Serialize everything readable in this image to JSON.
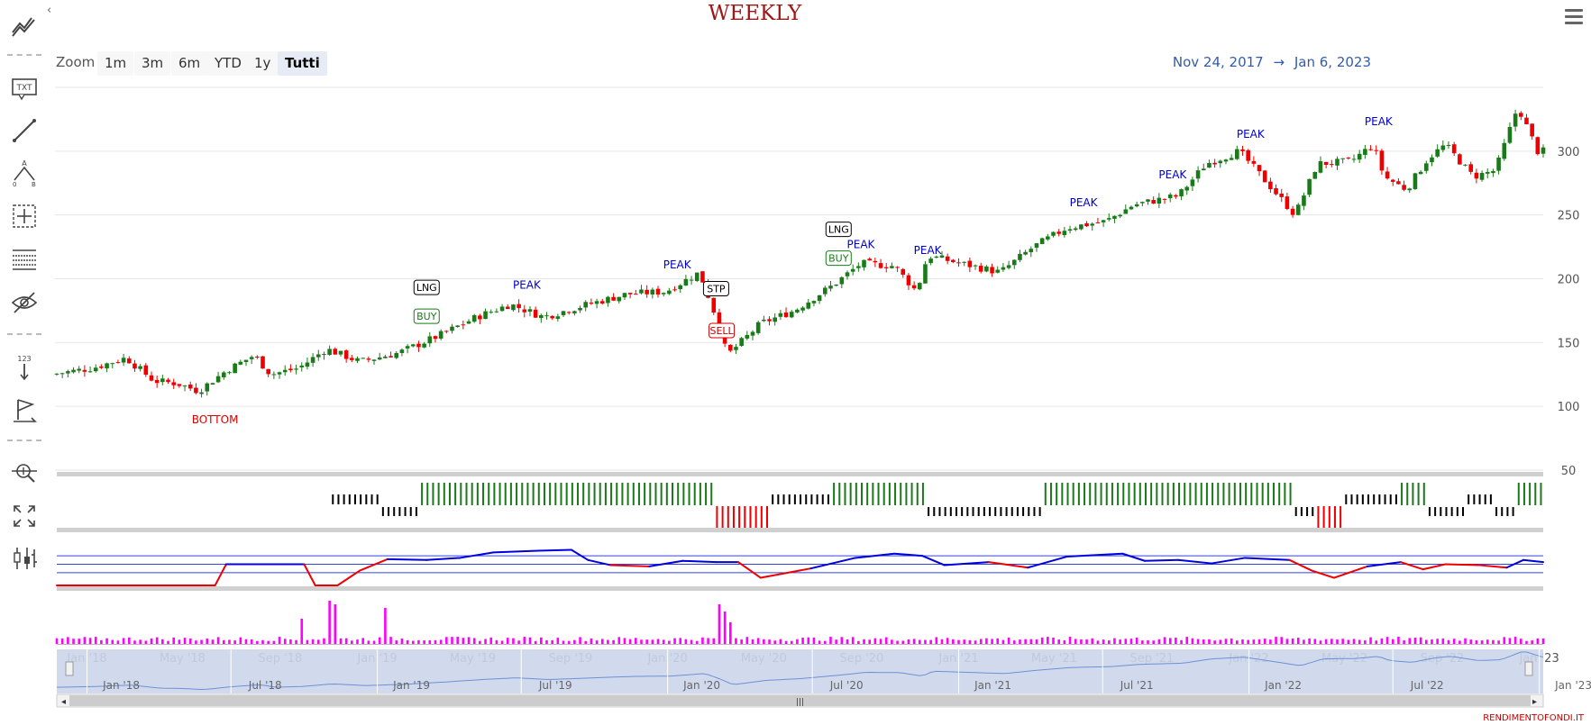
{
  "title": "WEEKLY",
  "zoom": {
    "label": "Zoom",
    "buttons": [
      "1m",
      "3m",
      "6m",
      "YTD",
      "1y",
      "Tutti"
    ],
    "active": "Tutti"
  },
  "range": {
    "from": "Nov 24, 2017",
    "arrow": "→",
    "to": "Jan 6, 2023"
  },
  "credit": "RENDIMENTOFONDI.IT",
  "toolbar": {
    "items": [
      {
        "name": "indicators-icon"
      },
      {
        "name": "text-annotation-icon",
        "text": "TXT"
      },
      {
        "name": "line-icon"
      },
      {
        "name": "fibonacci-icon",
        "text": "A 0 B"
      },
      {
        "name": "crosshair-icon"
      },
      {
        "name": "grid-lines-icon"
      },
      {
        "name": "hide-annotations-icon"
      },
      {
        "name": "vertical-count-icon",
        "text": "123"
      },
      {
        "name": "flag-icon"
      },
      {
        "name": "zoom-move-icon"
      },
      {
        "name": "fullscreen-icon"
      },
      {
        "name": "chart-type-icon"
      }
    ]
  },
  "colors": {
    "up": "#1a7a1a",
    "down": "#ee0000",
    "rsi": "#0000dd",
    "rsi_low": "#ee0000",
    "volume": "#ff00ff",
    "peak": "#0000cc",
    "bottom": "#dd0000",
    "navigator": "#ccd6eb"
  },
  "chart_data": {
    "type": "candlestick",
    "title": "WEEKLY",
    "x_ticks": [
      "Jan '18",
      "May '18",
      "Sep '18",
      "Jan '19",
      "May '19",
      "Sep '19",
      "Jan '20",
      "May '20",
      "Sep '20",
      "Jan '21",
      "May '21",
      "Sep '21",
      "Jan '22",
      "May '22",
      "Sep '22",
      "Jan '23"
    ],
    "y_ticks": [
      50,
      100,
      150,
      200,
      250,
      300
    ],
    "ylim": [
      50,
      350
    ],
    "price_path": [
      [
        "2017-11-24",
        125
      ],
      [
        "2018-01-15",
        130
      ],
      [
        "2018-02-26",
        138
      ],
      [
        "2018-04-02",
        120
      ],
      [
        "2018-05-01",
        118
      ],
      [
        "2018-05-28",
        112
      ],
      [
        "2018-07-02",
        128
      ],
      [
        "2018-08-06",
        140
      ],
      [
        "2018-08-27",
        125
      ],
      [
        "2018-10-01",
        130
      ],
      [
        "2018-11-05",
        145
      ],
      [
        "2018-12-17",
        135
      ],
      [
        "2019-02-04",
        142
      ],
      [
        "2019-03-25",
        155
      ],
      [
        "2019-05-13",
        170
      ],
      [
        "2019-06-24",
        180
      ],
      [
        "2019-08-05",
        170
      ],
      [
        "2019-09-30",
        180
      ],
      [
        "2019-11-18",
        188
      ],
      [
        "2020-01-06",
        190
      ],
      [
        "2020-02-17",
        205
      ],
      [
        "2020-03-09",
        170
      ],
      [
        "2020-03-23",
        140
      ],
      [
        "2020-05-04",
        165
      ],
      [
        "2020-06-15",
        175
      ],
      [
        "2020-08-03",
        195
      ],
      [
        "2020-09-07",
        212
      ],
      [
        "2020-10-19",
        210
      ],
      [
        "2020-11-16",
        190
      ],
      [
        "2020-11-30",
        218
      ],
      [
        "2021-01-25",
        210
      ],
      [
        "2021-03-01",
        205
      ],
      [
        "2021-04-12",
        225
      ],
      [
        "2021-05-24",
        240
      ],
      [
        "2021-07-12",
        245
      ],
      [
        "2021-08-16",
        258
      ],
      [
        "2021-10-11",
        265
      ],
      [
        "2021-11-15",
        290
      ],
      [
        "2021-12-27",
        300
      ],
      [
        "2022-02-07",
        270
      ],
      [
        "2022-03-07",
        250
      ],
      [
        "2022-04-04",
        290
      ],
      [
        "2022-05-16",
        292
      ],
      [
        "2022-06-13",
        305
      ],
      [
        "2022-06-27",
        280
      ],
      [
        "2022-07-25",
        270
      ],
      [
        "2022-08-22",
        295
      ],
      [
        "2022-09-12",
        305
      ],
      [
        "2022-10-17",
        280
      ],
      [
        "2022-11-14",
        285
      ],
      [
        "2022-12-12",
        335
      ],
      [
        "2023-01-06",
        300
      ]
    ],
    "annotations": [
      {
        "text": "BOTTOM",
        "date": "2018-06-11",
        "type": "bottom"
      },
      {
        "text": "LNG",
        "date": "2019-03-04",
        "type": "long"
      },
      {
        "text": "BUY",
        "date": "2019-03-04",
        "type": "buy"
      },
      {
        "text": "PEAK",
        "date": "2019-07-08",
        "type": "peak"
      },
      {
        "text": "PEAK",
        "date": "2020-01-13",
        "type": "peak"
      },
      {
        "text": "STP",
        "date": "2020-03-02",
        "type": "stop"
      },
      {
        "text": "SELL",
        "date": "2020-03-09",
        "type": "sell"
      },
      {
        "text": "LNG",
        "date": "2020-08-03",
        "type": "long"
      },
      {
        "text": "BUY",
        "date": "2020-08-03",
        "type": "buy"
      },
      {
        "text": "PEAK",
        "date": "2020-08-31",
        "type": "peak"
      },
      {
        "text": "PEAK",
        "date": "2020-11-23",
        "type": "peak"
      },
      {
        "text": "PEAK",
        "date": "2021-06-07",
        "type": "peak"
      },
      {
        "text": "PEAK",
        "date": "2021-09-27",
        "type": "peak"
      },
      {
        "text": "PEAK",
        "date": "2022-01-03",
        "type": "peak"
      },
      {
        "text": "PEAK",
        "date": "2022-06-13",
        "type": "peak"
      }
    ],
    "signal_segments": [
      {
        "from": "2018-11-05",
        "to": "2019-01-07",
        "state": "neutral-high"
      },
      {
        "from": "2019-01-07",
        "to": "2019-02-25",
        "state": "neutral-low"
      },
      {
        "from": "2019-02-25",
        "to": "2020-03-02",
        "state": "long"
      },
      {
        "from": "2020-03-02",
        "to": "2020-05-11",
        "state": "short"
      },
      {
        "from": "2020-05-11",
        "to": "2020-07-27",
        "state": "neutral-high"
      },
      {
        "from": "2020-07-27",
        "to": "2020-11-23",
        "state": "long"
      },
      {
        "from": "2020-11-23",
        "to": "2021-04-19",
        "state": "neutral-low"
      },
      {
        "from": "2021-04-19",
        "to": "2022-02-28",
        "state": "long"
      },
      {
        "from": "2022-02-28",
        "to": "2022-03-28",
        "state": "neutral-low"
      },
      {
        "from": "2022-03-28",
        "to": "2022-05-02",
        "state": "short"
      },
      {
        "from": "2022-05-02",
        "to": "2022-07-11",
        "state": "neutral-high"
      },
      {
        "from": "2022-07-11",
        "to": "2022-08-15",
        "state": "long"
      },
      {
        "from": "2022-08-15",
        "to": "2022-10-03",
        "state": "neutral-low"
      },
      {
        "from": "2022-10-03",
        "to": "2022-11-07",
        "state": "neutral-high"
      },
      {
        "from": "2022-11-07",
        "to": "2022-12-05",
        "state": "neutral-low"
      },
      {
        "from": "2022-12-05",
        "to": "2023-01-06",
        "state": "long"
      }
    ],
    "oscillator": {
      "levels": [
        30,
        50,
        70
      ],
      "path": [
        [
          "2017-11-24",
          0
        ],
        [
          "2018-06-11",
          0
        ],
        [
          "2018-06-25",
          50
        ],
        [
          "2018-10-01",
          50
        ],
        [
          "2018-10-15",
          0
        ],
        [
          "2018-11-12",
          0
        ],
        [
          "2018-12-10",
          35
        ],
        [
          "2019-01-14",
          62
        ],
        [
          "2019-03-04",
          60
        ],
        [
          "2019-04-15",
          65
        ],
        [
          "2019-05-27",
          78
        ],
        [
          "2019-07-22",
          82
        ],
        [
          "2019-09-02",
          84
        ],
        [
          "2019-09-23",
          60
        ],
        [
          "2019-10-21",
          48
        ],
        [
          "2019-12-09",
          45
        ],
        [
          "2020-01-20",
          58
        ],
        [
          "2020-03-02",
          55
        ],
        [
          "2020-03-30",
          55
        ],
        [
          "2020-04-27",
          18
        ],
        [
          "2020-06-29",
          40
        ],
        [
          "2020-08-24",
          65
        ],
        [
          "2020-10-12",
          75
        ],
        [
          "2020-11-16",
          70
        ],
        [
          "2020-12-14",
          48
        ],
        [
          "2021-02-08",
          55
        ],
        [
          "2021-03-29",
          42
        ],
        [
          "2021-05-17",
          68
        ],
        [
          "2021-07-26",
          75
        ],
        [
          "2021-08-23",
          58
        ],
        [
          "2021-10-04",
          60
        ],
        [
          "2021-11-15",
          52
        ],
        [
          "2021-12-27",
          65
        ],
        [
          "2022-02-21",
          60
        ],
        [
          "2022-03-21",
          35
        ],
        [
          "2022-04-18",
          18
        ],
        [
          "2022-05-30",
          45
        ],
        [
          "2022-07-11",
          55
        ],
        [
          "2022-08-08",
          38
        ],
        [
          "2022-09-05",
          50
        ],
        [
          "2022-10-17",
          48
        ],
        [
          "2022-11-21",
          42
        ],
        [
          "2022-12-12",
          60
        ],
        [
          "2023-01-06",
          55
        ]
      ]
    },
    "volume_spikes": [
      {
        "date": "2018-10-01",
        "value": 35
      },
      {
        "date": "2018-11-05",
        "value": 60
      },
      {
        "date": "2018-11-12",
        "value": 55
      },
      {
        "date": "2019-01-14",
        "value": 50
      },
      {
        "date": "2020-03-09",
        "value": 55
      },
      {
        "date": "2020-03-16",
        "value": 45
      },
      {
        "date": "2020-03-23",
        "value": 30
      }
    ],
    "navigator_ticks": [
      "Jan '18",
      "Jul '18",
      "Jan '19",
      "Jul '19",
      "Jan '20",
      "Jul '20",
      "Jan '21",
      "Jul '21",
      "Jan '22",
      "Jul '22",
      "Jan '23"
    ]
  }
}
